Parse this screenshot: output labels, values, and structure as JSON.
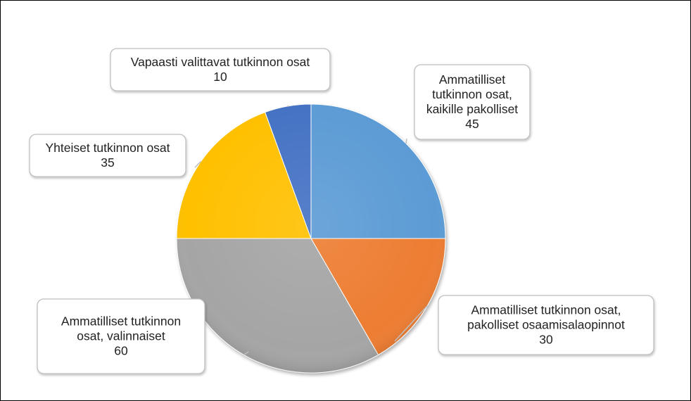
{
  "chart_data": {
    "type": "pie",
    "title": "",
    "slices": [
      {
        "label": [
          "Ammatilliset",
          "tutkinnon osat,",
          "kaikille pakolliset"
        ],
        "value": 45,
        "color": "#5B9BD5"
      },
      {
        "label": [
          "Ammatilliset tutkinnon osat,",
          "pakolliset osaamisalaopinnot"
        ],
        "value": 30,
        "color": "#ED7D31"
      },
      {
        "label": [
          "Ammatilliset tutkinnon",
          "osat, valinnaiset"
        ],
        "value": 60,
        "color": "#A5A5A5"
      },
      {
        "label": [
          "Yhteiset tutkinnon osat"
        ],
        "value": 35,
        "color": "#FFC000"
      },
      {
        "label": [
          "Vapaasti valittavat tutkinnon osat"
        ],
        "value": 10,
        "color": "#4472C4"
      }
    ],
    "start_angle_deg": 0,
    "direction": "clockwise",
    "legend": "none",
    "data_labels": "callouts-with-value"
  }
}
